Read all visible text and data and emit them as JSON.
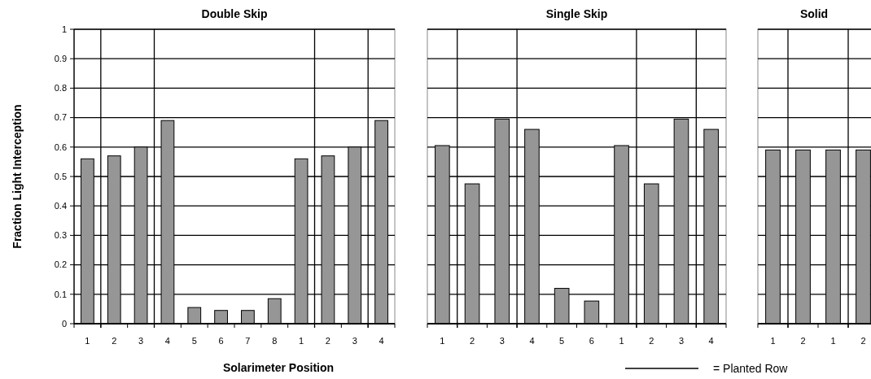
{
  "chart_data": [
    {
      "type": "bar",
      "title": "Double Skip",
      "xlabel": "Solarimeter Position",
      "ylabel": "Fraction Light Interception",
      "categories": [
        "1",
        "2",
        "3",
        "4",
        "5",
        "6",
        "7",
        "8",
        "1",
        "2",
        "3",
        "4"
      ],
      "values": [
        0.56,
        0.57,
        0.6,
        0.69,
        0.055,
        0.045,
        0.045,
        0.085,
        0.56,
        0.57,
        0.6,
        0.69
      ],
      "color": "#969696",
      "ylim": [
        0,
        1
      ],
      "yticks": [
        0,
        0.1,
        0.2,
        0.3,
        0.4,
        0.5,
        0.6,
        0.7,
        0.8,
        0.9,
        1
      ],
      "grid": "y"
    },
    {
      "type": "bar",
      "title": "Single Skip",
      "categories": [
        "1",
        "2",
        "3",
        "4",
        "5",
        "6",
        "1",
        "2",
        "3",
        "4"
      ],
      "values": [
        0.605,
        0.475,
        0.695,
        0.66,
        0.12,
        0.077,
        0.605,
        0.475,
        0.695,
        0.66
      ],
      "color": "#969696",
      "ylim": [
        0,
        1
      ],
      "yticks": [
        0,
        0.1,
        0.2,
        0.3,
        0.4,
        0.5,
        0.6,
        0.7,
        0.8,
        0.9,
        1
      ],
      "grid": "y",
      "tick_labels": "x",
      "annotations": [
        "= Planted Row"
      ]
    },
    {
      "type": "bar",
      "title": "Solid",
      "categories": [
        "1",
        "2",
        "1",
        "2"
      ],
      "values": [
        0.59,
        0.59,
        0.59,
        0.59
      ],
      "color": "#969696",
      "ylim": [
        0,
        1
      ],
      "yticks": [
        0,
        0.1,
        0.2,
        0.3,
        0.4,
        0.5,
        0.6,
        0.7,
        0.8,
        0.9,
        1
      ],
      "grid": "y",
      "tick_labels": "x"
    }
  ]
}
